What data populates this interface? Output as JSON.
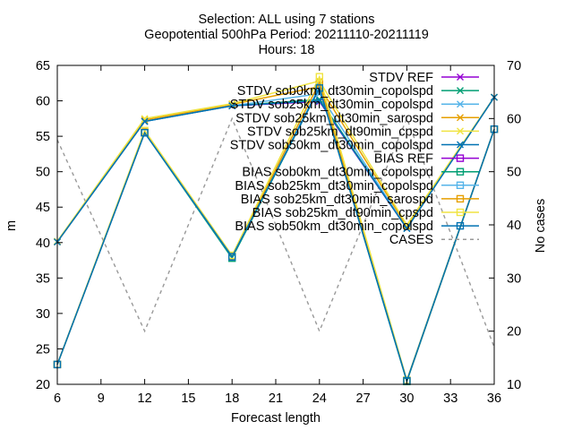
{
  "chart_data": {
    "type": "line",
    "title": {
      "line1": "Selection: ALL using     7 stations",
      "line2": "Geopotential 500hPa   Period: 20211110-20211119",
      "line3": "Hours: 18"
    },
    "xlabel": "Forecast length",
    "ylabel": "m",
    "y2label": "No cases",
    "x": [
      6,
      12,
      18,
      24,
      30,
      36
    ],
    "xticks": [
      6,
      9,
      12,
      15,
      18,
      21,
      24,
      27,
      30,
      33,
      36
    ],
    "yticks": [
      20,
      25,
      30,
      35,
      40,
      45,
      50,
      55,
      60,
      65
    ],
    "y2ticks": [
      10,
      20,
      30,
      40,
      50,
      60,
      70
    ],
    "xlim": [
      6,
      36
    ],
    "ylim": [
      20,
      65
    ],
    "y2lim": [
      10,
      70
    ],
    "grid": false,
    "legend_position": "top-right",
    "series": [
      {
        "name": "STDV REF",
        "color": "#9400d3",
        "marker": "x",
        "values": [
          40.1,
          57.1,
          59.3,
          59.9,
          42.0,
          60.5
        ]
      },
      {
        "name": "STDV sob0km_dt30min_copolspd",
        "color": "#009e73",
        "marker": "x",
        "values": [
          40.1,
          57.1,
          59.3,
          60.2,
          42.0,
          60.5
        ]
      },
      {
        "name": "STDV sob25km_dt30min_copolspd",
        "color": "#56b4e9",
        "marker": "x",
        "values": [
          40.1,
          57.1,
          59.3,
          61.0,
          42.0,
          60.5
        ]
      },
      {
        "name": "STDV sob25km_dt30min_sarospd",
        "color": "#e69f00",
        "marker": "x",
        "values": [
          40.1,
          57.3,
          59.5,
          62.0,
          42.3,
          60.5
        ]
      },
      {
        "name": "STDV sob25km_dt90min_cpspd",
        "color": "#f0e442",
        "marker": "x",
        "values": [
          40.2,
          57.5,
          59.6,
          62.8,
          42.5,
          60.5
        ]
      },
      {
        "name": "STDV sob50km_dt30min_copolspd",
        "color": "#0072b2",
        "marker": "x",
        "values": [
          40.1,
          57.1,
          59.3,
          60.0,
          42.0,
          60.5
        ]
      },
      {
        "name": "BIAS REF",
        "color": "#9400d3",
        "marker": "square",
        "values": [
          22.8,
          55.5,
          38.0,
          61.8,
          20.5,
          56.0
        ]
      },
      {
        "name": "BIAS sob0km_dt30min_copolspd",
        "color": "#009e73",
        "marker": "square",
        "values": [
          22.8,
          55.5,
          37.8,
          61.8,
          20.4,
          56.0
        ]
      },
      {
        "name": "BIAS sob25km_dt30min_copolspd",
        "color": "#56b4e9",
        "marker": "square",
        "values": [
          22.8,
          55.5,
          38.0,
          62.0,
          20.5,
          56.0
        ]
      },
      {
        "name": "BIAS sob25km_dt30min_sarospd",
        "color": "#e69f00",
        "marker": "square",
        "values": [
          22.8,
          55.6,
          38.1,
          62.6,
          20.5,
          56.0
        ]
      },
      {
        "name": "BIAS sob25km_dt90min_cpspd",
        "color": "#f0e442",
        "marker": "square",
        "values": [
          22.8,
          55.8,
          38.2,
          63.4,
          20.6,
          56.0
        ]
      },
      {
        "name": "BIAS sob50km_dt30min_copolspd",
        "color": "#0072b2",
        "marker": "square",
        "values": [
          22.8,
          55.5,
          38.0,
          61.8,
          20.5,
          56.0
        ]
      }
    ],
    "cases": {
      "name": "CASES",
      "color": "#999999",
      "axis": "y2",
      "values": [
        56,
        20,
        60,
        20,
        60,
        17
      ]
    }
  }
}
